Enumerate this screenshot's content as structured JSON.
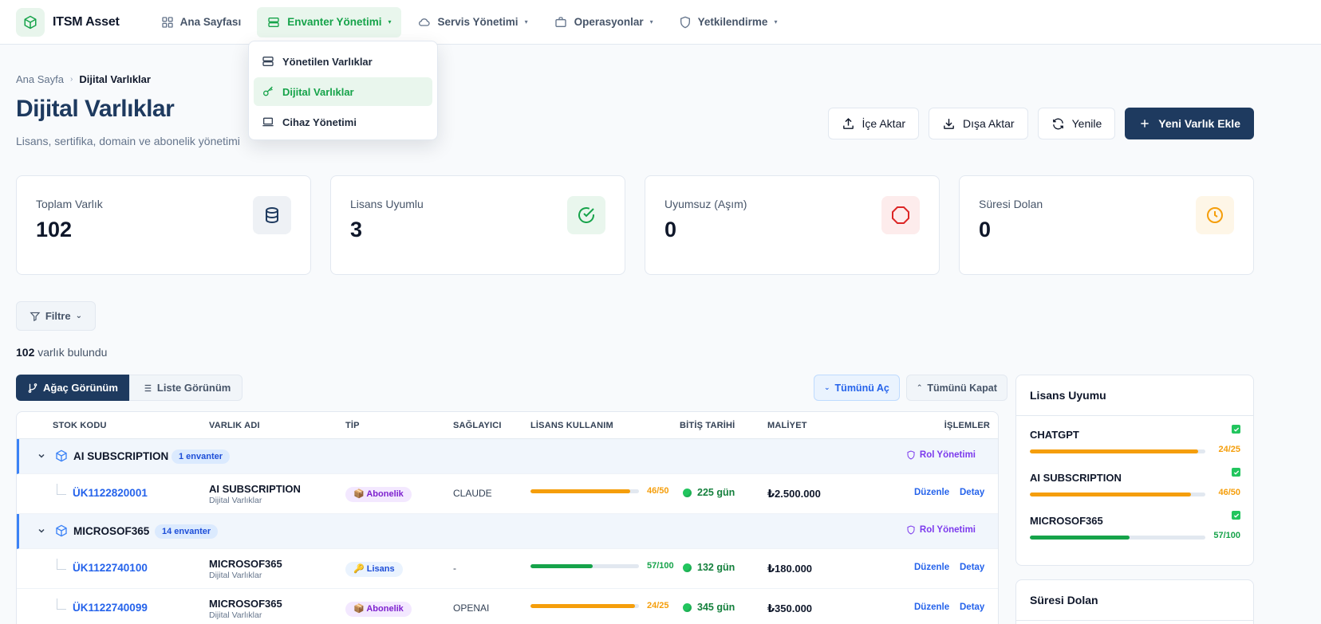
{
  "app": {
    "name": "ITSM Asset"
  },
  "nav": [
    {
      "label": "Ana Sayfası",
      "icon": "grid-icon"
    },
    {
      "label": "Envanter Yönetimi",
      "icon": "server-icon",
      "active": true
    },
    {
      "label": "Servis Yönetimi",
      "icon": "cloud-icon"
    },
    {
      "label": "Operasyonlar",
      "icon": "briefcase-icon"
    },
    {
      "label": "Yetkilendirme",
      "icon": "shield-icon"
    }
  ],
  "dropdown": [
    {
      "label": "Yönetilen Varlıklar",
      "icon": "server-icon"
    },
    {
      "label": "Dijital Varlıklar",
      "icon": "key-icon",
      "active": true
    },
    {
      "label": "Cihaz Yönetimi",
      "icon": "laptop-icon"
    }
  ],
  "breadcrumb": {
    "home": "Ana Sayfa",
    "current": "Dijital Varlıklar"
  },
  "page": {
    "title": "Dijital Varlıklar",
    "subtitle": "Lisans, sertifika, domain ve abonelik yönetimi"
  },
  "actions": {
    "import": "İçe Aktar",
    "export": "Dışa Aktar",
    "refresh": "Yenile",
    "add": "Yeni Varlık Ekle"
  },
  "stats": [
    {
      "label": "Toplam Varlık",
      "value": "102",
      "color": "#1e3a5f",
      "bg": "#f1f5f9"
    },
    {
      "label": "Lisans Uyumlu",
      "value": "3",
      "color": "#16a34a",
      "bg": "#e9f6ed"
    },
    {
      "label": "Uyumsuz (Aşım)",
      "value": "0",
      "color": "#dc2626",
      "bg": "#fdecec"
    },
    {
      "label": "Süresi Dolan",
      "value": "0",
      "color": "#f59e0b",
      "bg": "#fef6e7"
    }
  ],
  "filter": {
    "label": "Filtre"
  },
  "results": {
    "count": "102",
    "suffix": "varlık bulundu"
  },
  "views": {
    "tree": "Ağaç Görünüm",
    "list": "Liste Görünüm"
  },
  "expand": {
    "open_all": "Tümünü Aç",
    "close_all": "Tümünü Kapat"
  },
  "table": {
    "headers": [
      "STOK KODU",
      "VARLIK ADI",
      "TİP",
      "SAĞLAYICI",
      "LİSANS KULLANIM",
      "BİTİŞ TARİHİ",
      "MALİYET",
      "İŞLEMLER"
    ],
    "role_label": "Rol Yönetimi",
    "edit_label": "Düzenle",
    "detail_label": "Detay",
    "groups": [
      {
        "name": "AI SUBSCRIPTION",
        "badge": "1 envanter",
        "items": [
          {
            "stock": "ÜK1122820001",
            "name": "AI SUBSCRIPTION",
            "sub": "Dijital Varlıklar",
            "type": "📦 Abonelik",
            "type_kind": "abonelik",
            "provider": "CLAUDE",
            "used": 46,
            "total": 50,
            "usage": "46/50",
            "color": "#f59e0b",
            "days": "225 gün",
            "cost": "₺2.500.000"
          }
        ]
      },
      {
        "name": "MICROSOF365",
        "badge": "14 envanter",
        "items": [
          {
            "stock": "ÜK1122740100",
            "name": "MICROSOF365",
            "sub": "Dijital Varlıklar",
            "type": "🔑 Lisans",
            "type_kind": "lisans",
            "provider": "-",
            "used": 57,
            "total": 100,
            "usage": "57/100",
            "color": "#16a34a",
            "days": "132 gün",
            "cost": "₺180.000"
          },
          {
            "stock": "ÜK1122740099",
            "name": "MICROSOF365",
            "sub": "Dijital Varlıklar",
            "type": "📦 Abonelik",
            "type_kind": "abonelik",
            "provider": "OPENAI",
            "used": 24,
            "total": 25,
            "usage": "24/25",
            "color": "#f59e0b",
            "days": "345 gün",
            "cost": "₺350.000"
          }
        ]
      }
    ]
  },
  "compliance": {
    "title": "Lisans Uyumu",
    "items": [
      {
        "name": "CHATGPT",
        "used": 24,
        "total": 25,
        "text": "24/25",
        "color": "#f59e0b"
      },
      {
        "name": "AI SUBSCRIPTION",
        "used": 46,
        "total": 50,
        "text": "46/50",
        "color": "#f59e0b"
      },
      {
        "name": "MICROSOF365",
        "used": 57,
        "total": 100,
        "text": "57/100",
        "color": "#16a34a"
      }
    ]
  },
  "expiring": {
    "title": "Süresi Dolan"
  }
}
